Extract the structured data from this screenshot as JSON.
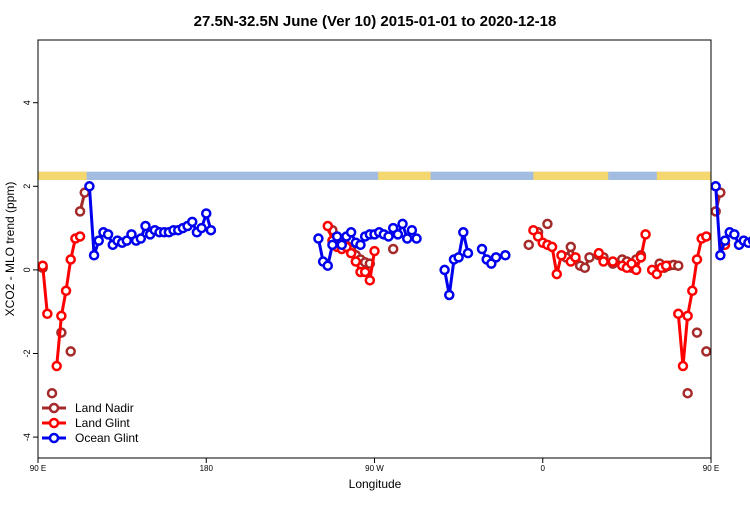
{
  "chart_data": {
    "type": "line",
    "title": "27.5N-32.5N June (Ver 10)   2015-01-01 to 2020-12-18",
    "xlabel": "Longitude",
    "ylabel": "XCO2 - MLO trend (ppm)",
    "xlim": [
      90,
      450
    ],
    "ylim": [
      -4.5,
      5.5
    ],
    "x_ticks": [
      {
        "value": 90,
        "label": "90 E"
      },
      {
        "value": 180,
        "label": "180"
      },
      {
        "value": 270,
        "label": "90 W"
      },
      {
        "value": 360,
        "label": "0"
      },
      {
        "value": 450,
        "label": "90 E"
      },
      {
        "value": 540,
        "label": "180"
      }
    ],
    "y_ticks": [
      {
        "value": -4,
        "label": "-4"
      },
      {
        "value": -2,
        "label": "-2"
      },
      {
        "value": 0,
        "label": "0"
      },
      {
        "value": 2,
        "label": "2"
      },
      {
        "value": 4,
        "label": "4"
      }
    ],
    "legend_position": "bottom-left",
    "land_mask": {
      "y_range": [
        2.15,
        2.35
      ],
      "land_color": "#f5d770",
      "ocean_color": "#a3bde0",
      "land_x": [
        [
          90,
          116
        ],
        [
          272,
          300
        ],
        [
          355,
          395
        ],
        [
          421,
          455
        ]
      ]
    },
    "series": [
      {
        "name": "Land Nadir",
        "color": "#a52a2a",
        "points": [
          [
            92.5,
            0.05
          ],
          [
            97.5,
            -2.95
          ],
          [
            102.5,
            -1.5
          ],
          [
            107.5,
            -1.95
          ],
          [
            112.5,
            1.4
          ],
          [
            115,
            1.85
          ],
          [
            247.5,
            0.95
          ],
          [
            250,
            0.75
          ],
          [
            252.5,
            0.65
          ],
          [
            255,
            0.58
          ],
          [
            257.5,
            0.48
          ],
          [
            260,
            0.35
          ],
          [
            262.5,
            0.25
          ],
          [
            265,
            0.18
          ],
          [
            267.5,
            0.15
          ],
          [
            280,
            0.5
          ],
          [
            352.5,
            0.6
          ],
          [
            357.5,
            0.9
          ],
          [
            362.5,
            1.1
          ],
          [
            372.5,
            0.3
          ],
          [
            375,
            0.55
          ],
          [
            377.5,
            0.25
          ],
          [
            380,
            0.1
          ],
          [
            382.5,
            0.05
          ],
          [
            385,
            0.3
          ],
          [
            390,
            0.35
          ],
          [
            392.5,
            0.3
          ],
          [
            397.5,
            0.15
          ],
          [
            402.5,
            0.25
          ],
          [
            405,
            0.2
          ],
          [
            407.5,
            0.05
          ],
          [
            410,
            0.25
          ],
          [
            412.5,
            0.35
          ],
          [
            422.5,
            0.15
          ],
          [
            425,
            0.05
          ],
          [
            427.5,
            0.1
          ],
          [
            430,
            0.12
          ],
          [
            432.5,
            0.1
          ],
          [
            437.5,
            -2.95
          ],
          [
            442.5,
            -1.5
          ],
          [
            447.5,
            -1.95
          ],
          [
            452.5,
            1.4
          ],
          [
            455,
            1.85
          ]
        ]
      },
      {
        "name": "Land Glint",
        "color": "#ff0000",
        "points": [
          [
            92.5,
            0.1
          ],
          [
            95,
            -1.05
          ],
          [
            100,
            -2.3
          ],
          [
            102.5,
            -1.1
          ],
          [
            105,
            -0.5
          ],
          [
            107.5,
            0.25
          ],
          [
            110,
            0.75
          ],
          [
            112.5,
            0.8
          ],
          [
            245,
            1.05
          ],
          [
            247.5,
            0.7
          ],
          [
            250,
            0.55
          ],
          [
            252.5,
            0.5
          ],
          [
            255,
            0.55
          ],
          [
            257.5,
            0.4
          ],
          [
            260,
            0.2
          ],
          [
            262.5,
            -0.05
          ],
          [
            265,
            -0.05
          ],
          [
            267.5,
            -0.25
          ],
          [
            270,
            0.45
          ],
          [
            355,
            0.95
          ],
          [
            357.5,
            0.8
          ],
          [
            360,
            0.65
          ],
          [
            362.5,
            0.6
          ],
          [
            365,
            0.55
          ],
          [
            367.5,
            -0.1
          ],
          [
            370,
            0.35
          ],
          [
            375,
            0.2
          ],
          [
            377.5,
            0.3
          ],
          [
            390,
            0.4
          ],
          [
            392.5,
            0.2
          ],
          [
            397.5,
            0.2
          ],
          [
            402.5,
            0.1
          ],
          [
            405,
            0.05
          ],
          [
            407.5,
            0.15
          ],
          [
            410,
            0
          ],
          [
            412.5,
            0.3
          ],
          [
            415,
            0.85
          ],
          [
            418.5,
            0
          ],
          [
            421,
            -0.1
          ],
          [
            423.5,
            0.05
          ],
          [
            426,
            0.1
          ],
          [
            432.5,
            -1.05
          ],
          [
            435,
            -2.3
          ],
          [
            437.5,
            -1.1
          ],
          [
            440,
            -0.5
          ],
          [
            442.5,
            0.25
          ],
          [
            445,
            0.75
          ],
          [
            447.5,
            0.8
          ],
          [
            457.5,
            0.6
          ]
        ]
      },
      {
        "name": "Ocean Glint",
        "color": "#0000ee",
        "points": [
          [
            117.5,
            2
          ],
          [
            120,
            0.35
          ],
          [
            122.5,
            0.7
          ],
          [
            125,
            0.9
          ],
          [
            127.5,
            0.85
          ],
          [
            130,
            0.6
          ],
          [
            132.5,
            0.7
          ],
          [
            135,
            0.65
          ],
          [
            137.5,
            0.7
          ],
          [
            140,
            0.85
          ],
          [
            142.5,
            0.7
          ],
          [
            145,
            0.75
          ],
          [
            147.5,
            1.05
          ],
          [
            150,
            0.85
          ],
          [
            152.5,
            0.95
          ],
          [
            155,
            0.9
          ],
          [
            157.5,
            0.9
          ],
          [
            160,
            0.9
          ],
          [
            162.5,
            0.95
          ],
          [
            165,
            0.95
          ],
          [
            167.5,
            1
          ],
          [
            170,
            1.05
          ],
          [
            172.5,
            1.15
          ],
          [
            175,
            0.9
          ],
          [
            177.5,
            1
          ],
          [
            180,
            1.35
          ],
          [
            182.5,
            0.95
          ],
          [
            240,
            0.75
          ],
          [
            242.5,
            0.2
          ],
          [
            245,
            0.1
          ],
          [
            247.5,
            0.6
          ],
          [
            250,
            0.8
          ],
          [
            252.5,
            0.6
          ],
          [
            255,
            0.8
          ],
          [
            257.5,
            0.9
          ],
          [
            260,
            0.65
          ],
          [
            262.5,
            0.6
          ],
          [
            265,
            0.8
          ],
          [
            267.5,
            0.85
          ],
          [
            270,
            0.85
          ],
          [
            272.5,
            0.9
          ],
          [
            275,
            0.85
          ],
          [
            277.5,
            0.8
          ],
          [
            280,
            1
          ],
          [
            282.5,
            0.85
          ],
          [
            285,
            1.1
          ],
          [
            287.5,
            0.75
          ],
          [
            290,
            0.95
          ],
          [
            292.5,
            0.75
          ],
          [
            307.5,
            0
          ],
          [
            310,
            -0.6
          ],
          [
            312.5,
            0.25
          ],
          [
            315,
            0.3
          ],
          [
            317.5,
            0.9
          ],
          [
            320,
            0.4
          ],
          [
            327.5,
            0.5
          ],
          [
            330,
            0.25
          ],
          [
            332.5,
            0.15
          ],
          [
            335,
            0.3
          ],
          [
            340,
            0.35
          ],
          [
            452.5,
            2
          ],
          [
            455,
            0.35
          ],
          [
            457.5,
            0.7
          ],
          [
            460,
            0.9
          ],
          [
            462.5,
            0.85
          ],
          [
            465,
            0.6
          ],
          [
            467.5,
            0.7
          ],
          [
            470,
            0.65
          ],
          [
            472.5,
            0.7
          ],
          [
            475,
            0.85
          ],
          [
            477.5,
            0.7
          ],
          [
            480,
            0.75
          ],
          [
            482.5,
            0.7
          ]
        ]
      }
    ]
  }
}
